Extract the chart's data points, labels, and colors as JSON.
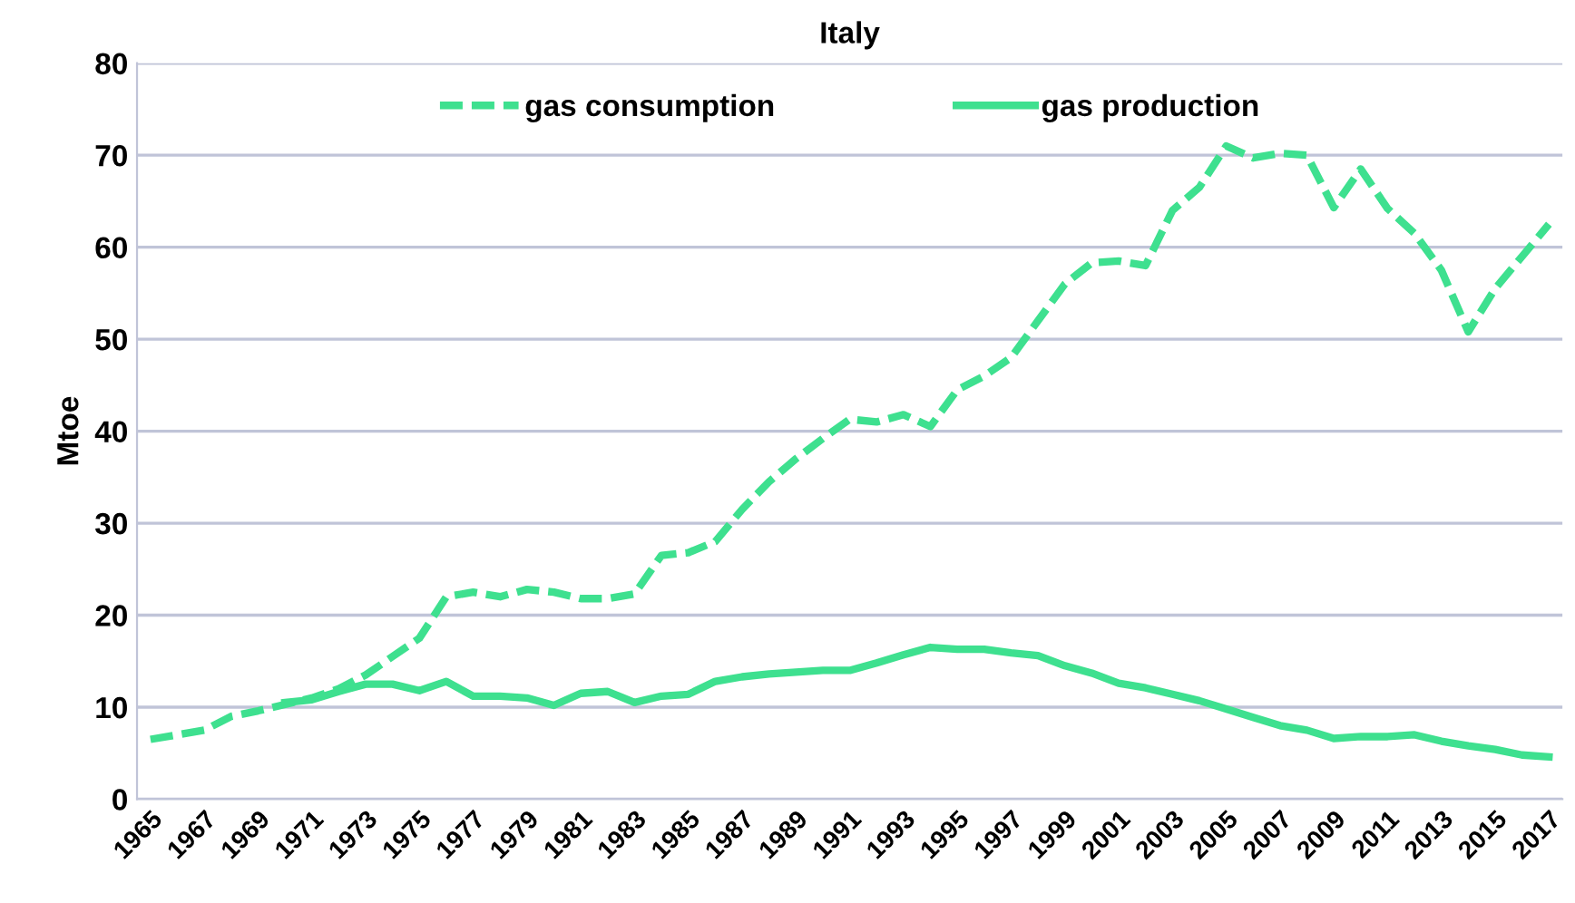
{
  "chart_data": {
    "type": "line",
    "title": "Italy",
    "ylabel": "Mtoe",
    "categories": [
      "1965",
      null,
      "1967",
      null,
      "1969",
      null,
      "1971",
      null,
      "1973",
      null,
      "1975",
      null,
      "1977",
      null,
      "1979",
      null,
      "1981",
      null,
      "1983",
      null,
      "1985",
      null,
      "1987",
      null,
      "1989",
      null,
      "1991",
      null,
      "1993",
      null,
      "1995",
      null,
      "1997",
      null,
      "1999",
      null,
      "2001",
      null,
      "2003",
      null,
      "2005",
      null,
      "2007",
      null,
      "2009",
      null,
      "2011",
      null,
      "2013",
      null,
      "2015",
      null,
      "2017"
    ],
    "series": [
      {
        "name": "gas consumption",
        "color": "#3ee08f",
        "line_style": "dashed",
        "values": [
          6.5,
          7.0,
          7.5,
          9.0,
          9.6,
          10.3,
          11.0,
          12.0,
          13.5,
          15.5,
          17.5,
          22.0,
          22.5,
          22.0,
          22.8,
          22.5,
          21.8,
          21.8,
          22.3,
          26.5,
          26.8,
          28.0,
          31.5,
          34.5,
          37.0,
          39.2,
          41.3,
          41.0,
          41.8,
          40.5,
          44.5,
          46.0,
          48.0,
          52.0,
          56.0,
          58.3,
          58.5,
          58.0,
          64.0,
          66.5,
          71.0,
          69.7,
          70.2,
          70.0,
          64.3,
          68.5,
          64.2,
          61.5,
          57.5,
          50.8,
          55.5,
          59.0,
          62.5
        ]
      },
      {
        "name": "gas production",
        "color": "#3ee08f",
        "line_style": "solid",
        "values": [
          null,
          null,
          null,
          null,
          null,
          10.5,
          10.8,
          11.7,
          12.5,
          12.5,
          11.8,
          12.8,
          11.2,
          11.2,
          11.0,
          10.2,
          11.5,
          11.7,
          10.5,
          11.2,
          11.4,
          12.8,
          13.3,
          13.6,
          13.8,
          14.0,
          14.0,
          14.8,
          15.7,
          16.5,
          16.3,
          16.3,
          15.9,
          15.6,
          14.5,
          13.7,
          12.6,
          12.1,
          11.4,
          10.7,
          9.8,
          8.9,
          8.0,
          7.5,
          6.6,
          6.8,
          6.8,
          7.0,
          6.3,
          5.8,
          5.4,
          4.8,
          4.6
        ]
      }
    ],
    "ylim": [
      0,
      80
    ],
    "yticks": [
      0,
      10,
      20,
      30,
      40,
      50,
      60,
      70,
      80
    ],
    "grid": "y",
    "legend": "top",
    "marker": "none"
  }
}
